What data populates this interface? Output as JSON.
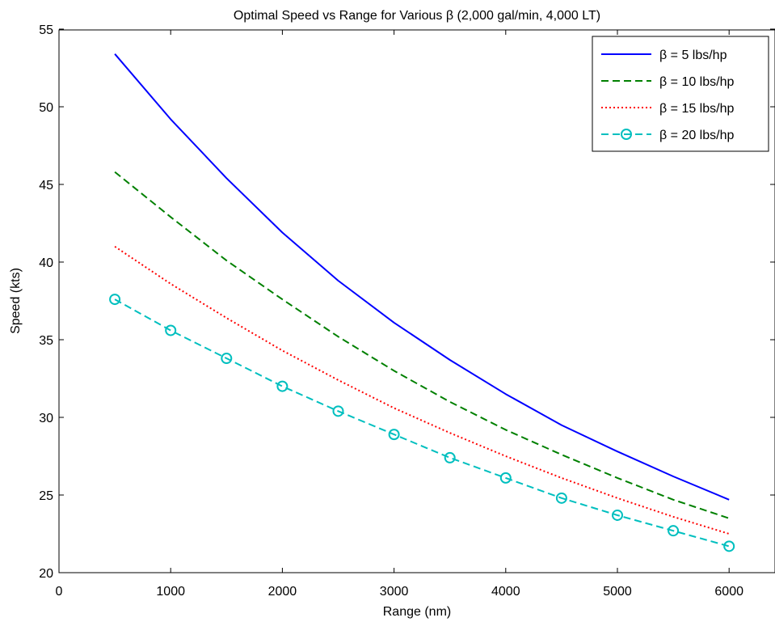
{
  "chart_data": {
    "type": "line",
    "title": "Optimal Speed vs Range for Various β (2,000 gal/min, 4,000 LT)",
    "xlabel": "Range (nm)",
    "ylabel": "Speed (kts)",
    "xlim": [
      0,
      6500
    ],
    "ylim": [
      20,
      55
    ],
    "xticks": [
      0,
      1000,
      2000,
      3000,
      4000,
      5000,
      6000
    ],
    "yticks": [
      20,
      25,
      30,
      35,
      40,
      45,
      50,
      55
    ],
    "grid": false,
    "legend_position": "top-right",
    "x": [
      500,
      1000,
      1500,
      2000,
      2500,
      3000,
      3500,
      4000,
      4500,
      5000,
      5500,
      6000
    ],
    "series": [
      {
        "name": "β = 5 lbs/hp",
        "color": "#0000ff",
        "line_style": "solid",
        "marker": "none",
        "values": [
          53.4,
          49.2,
          45.4,
          41.9,
          38.8,
          36.1,
          33.7,
          31.5,
          29.5,
          27.8,
          26.2,
          24.7
        ]
      },
      {
        "name": "β = 10 lbs/hp",
        "color": "#008000",
        "line_style": "dashed",
        "marker": "none",
        "values": [
          45.8,
          42.9,
          40.1,
          37.6,
          35.2,
          33.0,
          31.0,
          29.2,
          27.6,
          26.1,
          24.7,
          23.5
        ]
      },
      {
        "name": "β = 15 lbs/hp",
        "color": "#ff0000",
        "line_style": "dotted",
        "marker": "none",
        "values": [
          41.0,
          38.6,
          36.4,
          34.3,
          32.4,
          30.6,
          29.0,
          27.5,
          26.1,
          24.8,
          23.6,
          22.5
        ]
      },
      {
        "name": "β = 20 lbs/hp",
        "color": "#00bfbf",
        "line_style": "dashed",
        "marker": "circle",
        "values": [
          37.6,
          35.6,
          33.8,
          32.0,
          30.4,
          28.9,
          27.4,
          26.1,
          24.8,
          23.7,
          22.7,
          21.7
        ]
      }
    ]
  }
}
